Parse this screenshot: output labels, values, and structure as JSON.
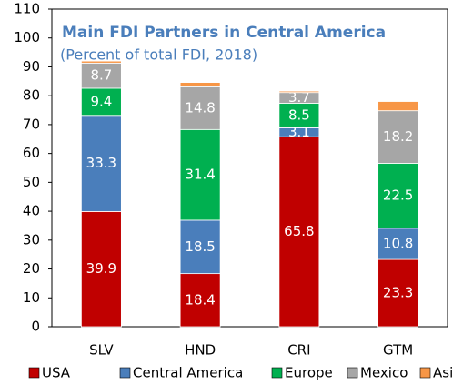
{
  "chart_data": {
    "type": "stacked_bar",
    "title": "Main FDI Partners in Central America",
    "subtitle": "(Percent of total FDI, 2018)",
    "categories": [
      "SLV",
      "HND",
      "CRI",
      "GTM"
    ],
    "series": [
      {
        "name": "USA",
        "color": "#c00000",
        "values": [
          39.9,
          18.4,
          65.8,
          23.3
        ],
        "labels": true
      },
      {
        "name": "Central America",
        "color": "#4a7ebb",
        "values": [
          33.3,
          18.5,
          3.1,
          10.8
        ],
        "labels": true
      },
      {
        "name": "Europe",
        "color": "#00b050",
        "values": [
          9.4,
          31.4,
          8.5,
          22.5
        ],
        "labels": true
      },
      {
        "name": "Mexico",
        "color": "#a6a6a6",
        "values": [
          8.7,
          14.8,
          3.7,
          18.2
        ],
        "labels": true
      },
      {
        "name": "Asia",
        "color": "#f79646",
        "values": [
          0.7,
          1.5,
          0.5,
          3.2
        ],
        "labels": false
      }
    ],
    "ylim": [
      0,
      110
    ],
    "yticks": [
      0,
      10,
      20,
      30,
      40,
      50,
      60,
      70,
      80,
      90,
      100,
      110
    ]
  }
}
